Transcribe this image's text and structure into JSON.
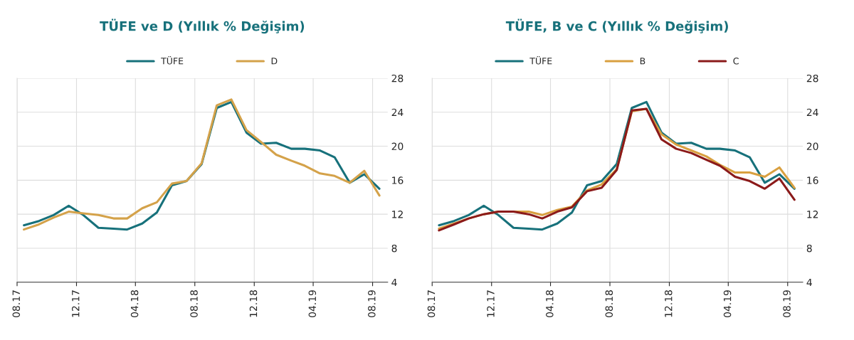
{
  "chart_data": [
    {
      "type": "line",
      "title": "TÜFE ve D (Yıllık % Değişim)",
      "x": [
        "2017-08-15",
        "2017-09-15",
        "2017-10-15",
        "2017-11-15",
        "2017-12-15",
        "2018-01-15",
        "2018-02-15",
        "2018-03-15",
        "2018-04-15",
        "2018-05-15",
        "2018-06-15",
        "2018-07-15",
        "2018-08-15",
        "2018-09-15",
        "2018-10-15",
        "2018-11-15",
        "2018-12-15",
        "2019-01-15",
        "2019-02-15",
        "2019-03-15",
        "2019-04-15",
        "2019-05-15",
        "2019-06-15",
        "2019-07-15",
        "2019-08-15"
      ],
      "series": [
        {
          "name": "TÜFE",
          "color": "#17717b",
          "values": [
            10.7,
            11.2,
            11.9,
            13.0,
            11.9,
            10.4,
            10.3,
            10.2,
            10.9,
            12.2,
            15.4,
            15.9,
            17.9,
            24.5,
            25.2,
            21.6,
            20.3,
            20.4,
            19.7,
            19.7,
            19.5,
            18.7,
            15.7,
            16.7,
            15.0
          ]
        },
        {
          "name": "D",
          "color": "#d4a24a",
          "values": [
            10.2,
            10.8,
            11.6,
            12.3,
            12.1,
            11.9,
            11.5,
            11.5,
            12.7,
            13.4,
            15.6,
            15.9,
            18.0,
            24.8,
            25.5,
            21.9,
            20.5,
            19.0,
            18.3,
            17.7,
            16.8,
            16.5,
            15.7,
            17.1,
            14.2
          ]
        }
      ],
      "xlim": [
        "2017-08-01",
        "2019-09-01"
      ],
      "xticks": [
        {
          "value": "2017-08-01",
          "label": "08.17"
        },
        {
          "value": "2017-12-01",
          "label": "12.17"
        },
        {
          "value": "2018-04-01",
          "label": "04.18"
        },
        {
          "value": "2018-08-01",
          "label": "08.18"
        },
        {
          "value": "2018-12-01",
          "label": "12.18"
        },
        {
          "value": "2019-04-01",
          "label": "04.19"
        },
        {
          "value": "2019-08-01",
          "label": "08.19"
        }
      ],
      "ylim": [
        4,
        28
      ],
      "yticks": [
        4,
        8,
        12,
        16,
        20,
        24,
        28
      ],
      "grid": true,
      "legend": "top",
      "marker": "none",
      "line_style": "solid"
    },
    {
      "type": "line",
      "title": "TÜFE, B ve C (Yıllık % Değişim)",
      "x": [
        "2017-08-15",
        "2017-09-15",
        "2017-10-15",
        "2017-11-15",
        "2017-12-15",
        "2018-01-15",
        "2018-02-15",
        "2018-03-15",
        "2018-04-15",
        "2018-05-15",
        "2018-06-15",
        "2018-07-15",
        "2018-08-15",
        "2018-09-15",
        "2018-10-15",
        "2018-11-15",
        "2018-12-15",
        "2019-01-15",
        "2019-02-15",
        "2019-03-15",
        "2019-04-15",
        "2019-05-15",
        "2019-06-15",
        "2019-07-15",
        "2019-08-15"
      ],
      "series": [
        {
          "name": "TÜFE",
          "color": "#17717b",
          "values": [
            10.7,
            11.2,
            11.9,
            13.0,
            11.9,
            10.4,
            10.3,
            10.2,
            10.9,
            12.2,
            15.4,
            15.9,
            17.9,
            24.5,
            25.2,
            21.6,
            20.3,
            20.4,
            19.7,
            19.7,
            19.5,
            18.7,
            15.7,
            16.7,
            15.0
          ]
        },
        {
          "name": "B",
          "color": "#d9a040",
          "values": [
            10.3,
            10.9,
            11.5,
            12.0,
            12.3,
            12.3,
            12.3,
            11.9,
            12.5,
            12.9,
            14.8,
            15.5,
            17.3,
            24.1,
            24.4,
            21.4,
            20.2,
            19.5,
            18.8,
            17.8,
            16.9,
            16.9,
            16.4,
            17.5,
            15.1
          ]
        },
        {
          "name": "C",
          "color": "#8b1a1a",
          "values": [
            10.1,
            10.8,
            11.5,
            12.0,
            12.3,
            12.3,
            12.0,
            11.5,
            12.3,
            12.8,
            14.7,
            15.1,
            17.2,
            24.2,
            24.4,
            20.8,
            19.7,
            19.2,
            18.4,
            17.7,
            16.4,
            15.9,
            15.0,
            16.2,
            13.7
          ]
        }
      ],
      "xlim": [
        "2017-08-01",
        "2019-09-01"
      ],
      "xticks": [
        {
          "value": "2017-08-01",
          "label": "08.17"
        },
        {
          "value": "2017-12-01",
          "label": "12.17"
        },
        {
          "value": "2018-04-01",
          "label": "04.18"
        },
        {
          "value": "2018-08-01",
          "label": "08.18"
        },
        {
          "value": "2018-12-01",
          "label": "12.18"
        },
        {
          "value": "2019-04-01",
          "label": "04.19"
        },
        {
          "value": "2019-08-01",
          "label": "08.19"
        }
      ],
      "ylim": [
        4,
        28
      ],
      "yticks": [
        4,
        8,
        12,
        16,
        20,
        24,
        28
      ],
      "grid": true,
      "legend": "top",
      "marker": "none",
      "line_style": "solid"
    }
  ]
}
